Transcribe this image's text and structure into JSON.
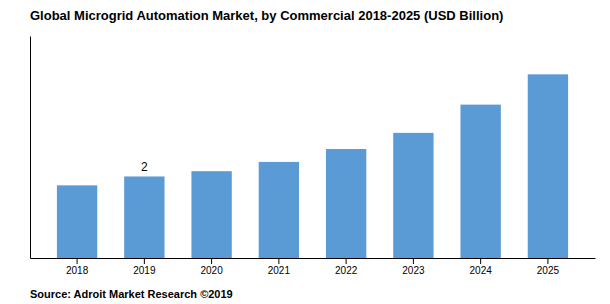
{
  "chart_data": {
    "type": "bar",
    "title": "Global Microgrid Automation Market, by Commercial 2018-2025 (USD Billion)",
    "categories": [
      "2018",
      "2019",
      "2020",
      "2021",
      "2022",
      "2023",
      "2024",
      "2025"
    ],
    "values": [
      1.8,
      2.02,
      2.15,
      2.38,
      2.7,
      3.1,
      3.8,
      4.55
    ],
    "color": "#5b9bd5",
    "ylim": [
      0,
      5.5
    ],
    "yticks": [],
    "tick_labels": "x",
    "grid": false,
    "annotations": [
      {
        "text": "2",
        "x": "2019"
      }
    ],
    "source": "Source: Adroit Market Research ©2019"
  }
}
